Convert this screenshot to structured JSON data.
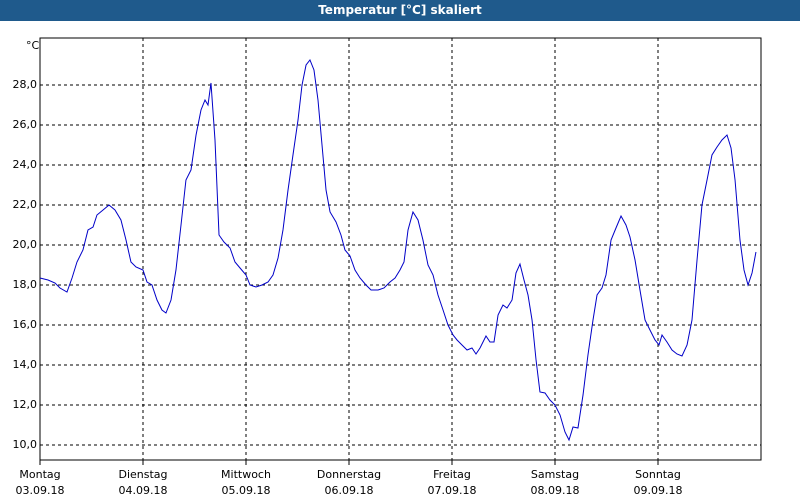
{
  "chart_data": {
    "type": "line",
    "title": "Temperatur [°C] skaliert",
    "y_label": "°C",
    "x": [
      0,
      0.078,
      0.146,
      0.194,
      0.262,
      0.311,
      0.359,
      0.417,
      0.466,
      0.515,
      0.553,
      0.612,
      0.67,
      0.728,
      0.786,
      0.835,
      0.883,
      0.932,
      1.0,
      1.039,
      1.087,
      1.136,
      1.184,
      1.223,
      1.272,
      1.32,
      1.369,
      1.417,
      1.466,
      1.515,
      1.563,
      1.602,
      1.631,
      1.66,
      1.699,
      1.738,
      1.786,
      1.845,
      1.893,
      1.942,
      2.0,
      2.039,
      2.097,
      2.155,
      2.214,
      2.262,
      2.311,
      2.359,
      2.408,
      2.456,
      2.505,
      2.544,
      2.583,
      2.621,
      2.66,
      2.699,
      2.738,
      2.777,
      2.816,
      2.874,
      2.922,
      2.961,
      3.01,
      3.058,
      3.107,
      3.165,
      3.214,
      3.282,
      3.34,
      3.398,
      3.447,
      3.495,
      3.534,
      3.573,
      3.621,
      3.67,
      3.718,
      3.767,
      3.816,
      3.864,
      3.913,
      3.961,
      4.01,
      4.049,
      4.097,
      4.146,
      4.194,
      4.233,
      4.272,
      4.33,
      4.369,
      4.408,
      4.447,
      4.495,
      4.534,
      4.583,
      4.621,
      4.66,
      4.699,
      4.738,
      4.777,
      4.816,
      4.854,
      4.903,
      4.951,
      5.0,
      5.049,
      5.097,
      5.136,
      5.175,
      5.223,
      5.272,
      5.32,
      5.369,
      5.408,
      5.456,
      5.495,
      5.544,
      5.592,
      5.641,
      5.689,
      5.728,
      5.777,
      5.825,
      5.874,
      5.922,
      5.971,
      6.01,
      6.039,
      6.087,
      6.136,
      6.184,
      6.233,
      6.282,
      6.33,
      6.379,
      6.427,
      6.476,
      6.524,
      6.573,
      6.621,
      6.67,
      6.709,
      6.748,
      6.796,
      6.835,
      6.874,
      6.913,
      6.951
    ],
    "series": [
      {
        "color": "#0000c8",
        "values": [
          18.35,
          18.25,
          18.1,
          17.85,
          17.65,
          18.35,
          19.15,
          19.75,
          20.75,
          20.9,
          21.5,
          21.75,
          22.0,
          21.75,
          21.25,
          20.25,
          19.15,
          18.9,
          18.75,
          18.15,
          18.0,
          17.25,
          16.75,
          16.6,
          17.25,
          18.75,
          21.0,
          23.25,
          23.75,
          25.5,
          26.75,
          27.25,
          27.0,
          28.1,
          25.25,
          20.5,
          20.15,
          19.85,
          19.15,
          18.85,
          18.5,
          18.0,
          17.9,
          18.0,
          18.15,
          18.5,
          19.35,
          20.75,
          22.75,
          24.5,
          26.25,
          28.0,
          29.0,
          29.25,
          28.75,
          27.25,
          25.0,
          22.75,
          21.65,
          21.15,
          20.5,
          19.75,
          19.45,
          18.75,
          18.35,
          18.0,
          17.75,
          17.75,
          17.85,
          18.15,
          18.35,
          18.75,
          19.15,
          20.75,
          21.65,
          21.25,
          20.25,
          19.0,
          18.5,
          17.5,
          16.75,
          16.0,
          15.5,
          15.25,
          15.0,
          14.75,
          14.85,
          14.55,
          14.85,
          15.45,
          15.15,
          15.15,
          16.5,
          17.0,
          16.85,
          17.25,
          18.6,
          19.05,
          18.25,
          17.5,
          16.25,
          14.25,
          12.65,
          12.6,
          12.25,
          12.0,
          11.5,
          10.65,
          10.25,
          10.9,
          10.85,
          12.5,
          14.5,
          16.25,
          17.5,
          17.85,
          18.5,
          20.25,
          20.85,
          21.45,
          21.0,
          20.4,
          19.25,
          17.75,
          16.25,
          15.75,
          15.25,
          15.0,
          15.5,
          15.15,
          14.75,
          14.55,
          14.45,
          15.0,
          16.25,
          19.25,
          22.0,
          23.25,
          24.5,
          24.9,
          25.25,
          25.5,
          24.85,
          23.25,
          20.25,
          18.75,
          18.0,
          18.6,
          19.65
        ]
      }
    ],
    "xlim": [
      0,
      7
    ],
    "xticks": [
      {
        "value": 0,
        "label": "Montag"
      },
      {
        "value": 1,
        "label": "Dienstag"
      },
      {
        "value": 2,
        "label": "Mittwoch"
      },
      {
        "value": 3,
        "label": "Donnerstag"
      },
      {
        "value": 4,
        "label": "Freitag"
      },
      {
        "value": 5,
        "label": "Samstag"
      },
      {
        "value": 6,
        "label": "Sonntag"
      }
    ],
    "xtick_dates": [
      "03.09.18",
      "04.09.18",
      "05.09.18",
      "06.09.18",
      "07.09.18",
      "08.09.18",
      "09.09.18"
    ],
    "ylim": [
      9.25,
      30.35
    ],
    "yticks": [
      {
        "value": 10,
        "label": "10,0"
      },
      {
        "value": 12,
        "label": "12,0"
      },
      {
        "value": 14,
        "label": "14,0"
      },
      {
        "value": 16,
        "label": "16,0"
      },
      {
        "value": 18,
        "label": "18,0"
      },
      {
        "value": 20,
        "label": "20,0"
      },
      {
        "value": 22,
        "label": "22,0"
      },
      {
        "value": 24,
        "label": "24,0"
      },
      {
        "value": 26,
        "label": "26,0"
      },
      {
        "value": 28,
        "label": "28,0"
      }
    ],
    "grid": true
  }
}
